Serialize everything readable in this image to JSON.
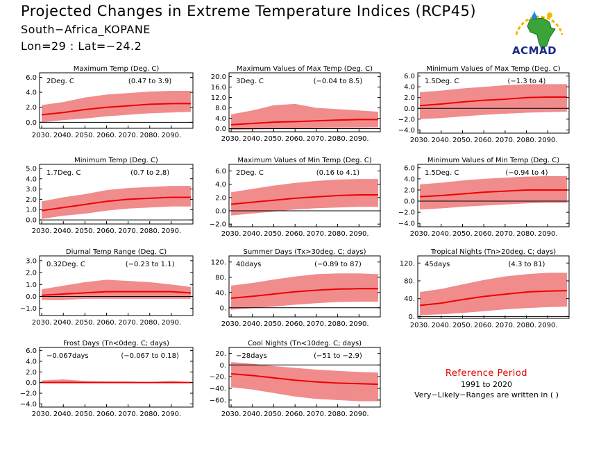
{
  "header": {
    "title": "Projected Changes in Extreme Temperature Indices (RCP45)",
    "location": "South−Africa_KOPANE",
    "coords": "Lon=29 : Lat=−24.2"
  },
  "logo": {
    "text": "ACMAD",
    "icon": "africa-map-logo-icon"
  },
  "reference": {
    "title": "Reference Period",
    "years": "1991 to 2020",
    "note": "Very−Likely−Ranges are written in ( )"
  },
  "colors": {
    "band": "#f08080",
    "line": "#ee0000",
    "zero": "#000000"
  },
  "chart_data": [
    {
      "type": "area",
      "title": "Maximum Temp (Deg. C)",
      "summary": "2Deg. C",
      "range": "(0.47 to 3.9)",
      "yticks": [
        "6.0",
        "4.0",
        "2.0",
        "0.0"
      ],
      "ytick_values": [
        6,
        4,
        2,
        0
      ],
      "ylim": [
        -0.8,
        6.6
      ],
      "xticks": [
        "2030.",
        "2040.",
        "2050.",
        "2060.",
        "2070.",
        "2080.",
        "2090."
      ],
      "xlim": [
        2029,
        2100
      ],
      "median": {
        "x": [
          2030,
          2040,
          2050,
          2060,
          2070,
          2080,
          2090,
          2099
        ],
        "y": [
          1.0,
          1.3,
          1.7,
          2.0,
          2.2,
          2.4,
          2.5,
          2.5
        ]
      },
      "band": {
        "x": [
          2030,
          2040,
          2050,
          2060,
          2070,
          2080,
          2090,
          2099
        ],
        "low": [
          0.0,
          0.3,
          0.5,
          0.8,
          1.0,
          1.2,
          1.3,
          1.4
        ],
        "high": [
          2.3,
          2.7,
          3.3,
          3.7,
          3.9,
          4.1,
          4.2,
          4.2
        ]
      }
    },
    {
      "type": "area",
      "title": "Maximum Values of Max Temp (Deg. C)",
      "summary": "3Deg. C",
      "range": "(−0.04 to 8.5)",
      "yticks": [
        "20.0",
        "16.0",
        "12.0",
        "8.0",
        "4.0",
        "0.0"
      ],
      "ytick_values": [
        20,
        16,
        12,
        8,
        4,
        0
      ],
      "ylim": [
        -1.2,
        21.5
      ],
      "xticks": [
        "2030.",
        "2040.",
        "2050.",
        "2060.",
        "2070.",
        "2080.",
        "2090."
      ],
      "xlim": [
        2029,
        2100
      ],
      "median": {
        "x": [
          2030,
          2040,
          2050,
          2060,
          2070,
          2080,
          2090,
          2099
        ],
        "y": [
          1.5,
          2.0,
          2.5,
          2.7,
          3.0,
          3.3,
          3.5,
          3.5
        ]
      },
      "band": {
        "x": [
          2030,
          2040,
          2050,
          2060,
          2070,
          2080,
          2090,
          2099
        ],
        "low": [
          -0.5,
          -0.3,
          -0.2,
          0.0,
          0.2,
          0.3,
          0.4,
          0.5
        ],
        "high": [
          5.5,
          7.0,
          9.0,
          9.5,
          8.0,
          7.5,
          7.0,
          6.5
        ]
      }
    },
    {
      "type": "area",
      "title": "Minimum Values of Max Temp (Deg. C)",
      "summary": "1.5Deg. C",
      "range": "(−1.3 to 4)",
      "yticks": [
        "6.0",
        "4.0",
        "2.0",
        "0.0",
        "−2.0",
        "−4.0"
      ],
      "ytick_values": [
        6,
        4,
        2,
        0,
        -2,
        -4
      ],
      "ylim": [
        -4.6,
        6.6
      ],
      "xticks": [
        "2030.",
        "2040.",
        "2050.",
        "2060.",
        "2070.",
        "2080.",
        "2090."
      ],
      "xlim": [
        2029,
        2100
      ],
      "median": {
        "x": [
          2030,
          2040,
          2050,
          2060,
          2070,
          2080,
          2090,
          2099
        ],
        "y": [
          0.5,
          0.8,
          1.2,
          1.5,
          1.7,
          2.0,
          2.1,
          2.1
        ]
      },
      "band": {
        "x": [
          2030,
          2040,
          2050,
          2060,
          2070,
          2080,
          2090,
          2099
        ],
        "low": [
          -2.0,
          -1.8,
          -1.5,
          -1.2,
          -1.0,
          -0.8,
          -0.7,
          -0.6
        ],
        "high": [
          3.0,
          3.3,
          3.7,
          4.0,
          4.3,
          4.5,
          4.5,
          4.5
        ]
      }
    },
    {
      "type": "area",
      "title": "Minimum Temp (Deg. C)",
      "summary": "1.7Deg. C",
      "range": "(0.7 to 2.8)",
      "yticks": [
        "5.0",
        "4.0",
        "3.0",
        "2.0",
        "1.0",
        "0.0"
      ],
      "ytick_values": [
        5,
        4,
        3,
        2,
        1,
        0
      ],
      "ylim": [
        -0.4,
        5.4
      ],
      "xticks": [
        "2030.",
        "2040.",
        "2050.",
        "2060.",
        "2070.",
        "2080.",
        "2090."
      ],
      "xlim": [
        2029,
        2100
      ],
      "median": {
        "x": [
          2030,
          2040,
          2050,
          2060,
          2070,
          2080,
          2090,
          2099
        ],
        "y": [
          0.9,
          1.2,
          1.5,
          1.8,
          2.0,
          2.1,
          2.2,
          2.2
        ]
      },
      "band": {
        "x": [
          2030,
          2040,
          2050,
          2060,
          2070,
          2080,
          2090,
          2099
        ],
        "low": [
          0.1,
          0.4,
          0.6,
          0.9,
          1.1,
          1.2,
          1.3,
          1.3
        ],
        "high": [
          1.8,
          2.2,
          2.5,
          2.9,
          3.1,
          3.2,
          3.3,
          3.3
        ]
      }
    },
    {
      "type": "area",
      "title": "Maximum Values of Min Temp (Deg. C)",
      "summary": "2Deg. C",
      "range": "(0.16 to 4.1)",
      "yticks": [
        "6.0",
        "4.0",
        "2.0",
        "0.0",
        "−2.0"
      ],
      "ytick_values": [
        6,
        4,
        2,
        0,
        -2
      ],
      "ylim": [
        -2.4,
        7.0
      ],
      "xticks": [
        "2030.",
        "2040.",
        "2050.",
        "2060.",
        "2070.",
        "2080.",
        "2090."
      ],
      "xlim": [
        2029,
        2100
      ],
      "median": {
        "x": [
          2030,
          2040,
          2050,
          2060,
          2070,
          2080,
          2090,
          2099
        ],
        "y": [
          1.0,
          1.3,
          1.6,
          1.9,
          2.1,
          2.3,
          2.4,
          2.4
        ]
      },
      "band": {
        "x": [
          2030,
          2040,
          2050,
          2060,
          2070,
          2080,
          2090,
          2099
        ],
        "low": [
          -0.7,
          -0.4,
          -0.1,
          0.2,
          0.4,
          0.5,
          0.6,
          0.6
        ],
        "high": [
          2.8,
          3.3,
          3.8,
          4.2,
          4.5,
          4.7,
          4.8,
          4.8
        ]
      }
    },
    {
      "type": "area",
      "title": "Minimum Values of Min Temp (Deg. C)",
      "summary": "1.5Deg. C",
      "range": "(−0.94 to 4)",
      "yticks": [
        "6.0",
        "4.0",
        "2.0",
        "0.0",
        "−2.0",
        "−4.0"
      ],
      "ytick_values": [
        6,
        4,
        2,
        0,
        -2,
        -4
      ],
      "ylim": [
        -4.6,
        6.6
      ],
      "xticks": [
        "2030.",
        "2040.",
        "2050.",
        "2060.",
        "2070.",
        "2080.",
        "2090."
      ],
      "xlim": [
        2029,
        2100
      ],
      "median": {
        "x": [
          2030,
          2040,
          2050,
          2060,
          2070,
          2080,
          2090,
          2099
        ],
        "y": [
          0.8,
          1.0,
          1.3,
          1.6,
          1.8,
          2.0,
          2.0,
          2.0
        ]
      },
      "band": {
        "x": [
          2030,
          2040,
          2050,
          2060,
          2070,
          2080,
          2090,
          2099
        ],
        "low": [
          -1.5,
          -1.3,
          -1.0,
          -0.8,
          -0.6,
          -0.4,
          -0.3,
          -0.3
        ],
        "high": [
          3.0,
          3.3,
          3.7,
          4.0,
          4.2,
          4.4,
          4.5,
          4.5
        ]
      }
    },
    {
      "type": "area",
      "title": "Diurnal Temp Range (Deg. C)",
      "summary": "0.32Deg. C",
      "range": "(−0.23 to 1.1)",
      "yticks": [
        "3.0",
        "2.0",
        "1.0",
        "0.0",
        "−1.0"
      ],
      "ytick_values": [
        3,
        2,
        1,
        0,
        -1
      ],
      "ylim": [
        -1.6,
        3.4
      ],
      "xticks": [
        "2030.",
        "2040.",
        "2050.",
        "2060.",
        "2070.",
        "2080.",
        "2090."
      ],
      "xlim": [
        2029,
        2100
      ],
      "median": {
        "x": [
          2030,
          2040,
          2050,
          2060,
          2070,
          2080,
          2090,
          2099
        ],
        "y": [
          0.1,
          0.2,
          0.3,
          0.4,
          0.4,
          0.4,
          0.4,
          0.3
        ]
      },
      "band": {
        "x": [
          2030,
          2040,
          2050,
          2060,
          2070,
          2080,
          2090,
          2099
        ],
        "low": [
          -0.3,
          -0.3,
          -0.2,
          -0.2,
          -0.2,
          -0.2,
          -0.2,
          -0.2
        ],
        "high": [
          0.6,
          0.9,
          1.2,
          1.4,
          1.3,
          1.2,
          1.0,
          0.8
        ]
      }
    },
    {
      "type": "area",
      "title": "Summer Days (Tx>30deg. C; days)",
      "summary": "40days",
      "range": "(−0.89 to 87)",
      "yticks": [
        "120.",
        "80.",
        "40.",
        "0."
      ],
      "ytick_values": [
        120,
        80,
        40,
        0
      ],
      "ylim": [
        -24,
        136
      ],
      "xticks": [
        "2030.",
        "2040.",
        "2050.",
        "2060.",
        "2070.",
        "2080.",
        "2090."
      ],
      "xlim": [
        2029,
        2100
      ],
      "median": {
        "x": [
          2030,
          2040,
          2050,
          2060,
          2070,
          2080,
          2090,
          2099
        ],
        "y": [
          25,
          30,
          36,
          42,
          46,
          49,
          50,
          50
        ]
      },
      "band": {
        "x": [
          2030,
          2040,
          2050,
          2060,
          2070,
          2080,
          2090,
          2099
        ],
        "low": [
          -5,
          -1,
          3,
          8,
          12,
          15,
          16,
          16
        ],
        "high": [
          58,
          65,
          74,
          82,
          88,
          90,
          90,
          88
        ]
      }
    },
    {
      "type": "area",
      "title": "Tropical Nights (Tn>20deg. C; days)",
      "summary": "45days",
      "range": "(4.3 to 81)",
      "yticks": [
        "120.",
        "80.",
        "40.",
        "0."
      ],
      "ytick_values": [
        120,
        80,
        40,
        0
      ],
      "ylim": [
        -4,
        136
      ],
      "xticks": [
        "2030.",
        "2040.",
        "2050.",
        "2060.",
        "2070.",
        "2080.",
        "2090."
      ],
      "xlim": [
        2029,
        2100
      ],
      "median": {
        "x": [
          2030,
          2040,
          2050,
          2060,
          2070,
          2080,
          2090,
          2099
        ],
        "y": [
          25,
          30,
          38,
          45,
          50,
          55,
          57,
          58
        ]
      },
      "band": {
        "x": [
          2030,
          2040,
          2050,
          2060,
          2070,
          2080,
          2090,
          2099
        ],
        "low": [
          3,
          5,
          8,
          12,
          16,
          19,
          21,
          22
        ],
        "high": [
          55,
          62,
          72,
          82,
          90,
          95,
          98,
          98
        ]
      }
    },
    {
      "type": "area",
      "title": "Frost Days (Tn<0deg. C; days)",
      "summary": "−0.067days",
      "range": "(−0.067 to 0.18)",
      "yticks": [
        "6.0",
        "4.0",
        "2.0",
        "0.0",
        "−2.0",
        "−4.0"
      ],
      "ytick_values": [
        6,
        4,
        2,
        0,
        -2,
        -4
      ],
      "ylim": [
        -4.6,
        6.6
      ],
      "xticks": [
        "2030.",
        "2040.",
        "2050.",
        "2060.",
        "2070.",
        "2080.",
        "2090."
      ],
      "xlim": [
        2029,
        2100
      ],
      "median": {
        "x": [
          2030,
          2040,
          2050,
          2060,
          2070,
          2080,
          2090,
          2099
        ],
        "y": [
          0,
          0,
          0,
          0,
          0,
          0,
          0,
          0
        ]
      },
      "band": {
        "x": [
          2030,
          2040,
          2050,
          2060,
          2070,
          2080,
          2090,
          2099
        ],
        "low": [
          -0.1,
          -0.1,
          -0.1,
          -0.1,
          -0.1,
          -0.1,
          -0.1,
          -0.1
        ],
        "high": [
          0.4,
          0.6,
          0.3,
          0.2,
          0.2,
          0.1,
          0.3,
          0.1
        ]
      }
    },
    {
      "type": "area",
      "title": "Cool Nights (Tn<10deg. C; days)",
      "summary": "−28days",
      "range": "(−51 to −2.9)",
      "yticks": [
        "20.",
        "0.",
        "−20.",
        "−40.",
        "−60."
      ],
      "ytick_values": [
        20,
        0,
        -20,
        -40,
        -60
      ],
      "ylim": [
        -72,
        30
      ],
      "xticks": [
        "2030.",
        "2040.",
        "2050.",
        "2060.",
        "2070.",
        "2080.",
        "2090."
      ],
      "xlim": [
        2029,
        2100
      ],
      "median": {
        "x": [
          2030,
          2040,
          2050,
          2060,
          2070,
          2080,
          2090,
          2099
        ],
        "y": [
          -15,
          -18,
          -22,
          -26,
          -29,
          -31,
          -32,
          -33
        ]
      },
      "band": {
        "x": [
          2030,
          2040,
          2050,
          2060,
          2070,
          2080,
          2090,
          2099
        ],
        "low": [
          -38,
          -42,
          -48,
          -54,
          -58,
          -60,
          -62,
          -62
        ],
        "high": [
          5,
          2,
          -2,
          -5,
          -8,
          -10,
          -12,
          -13
        ]
      }
    }
  ]
}
